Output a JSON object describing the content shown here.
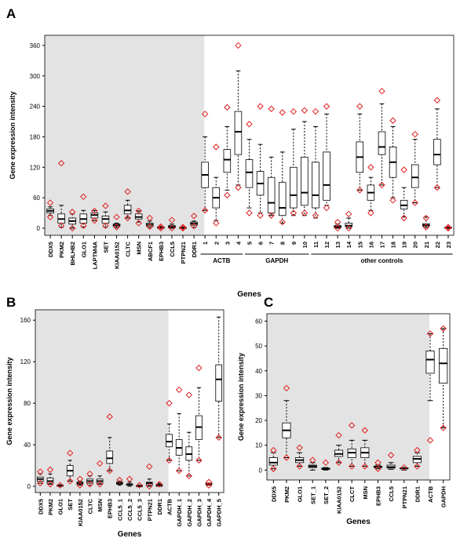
{
  "chart_data": [
    {
      "panel": "A",
      "type": "box",
      "xlabel": "Genes",
      "ylabel": "Gene expression intensity",
      "ylim": [
        -14,
        380
      ],
      "yticks": [
        0,
        60,
        120,
        180,
        240,
        300,
        360
      ],
      "shaded_count": 14,
      "categories": [
        "DDX5",
        "PKM2",
        "BHLHB2",
        "GLO1",
        "LAPTM4A",
        "SET",
        "KIAA0152",
        "CLTC",
        "MSN",
        "ABCF1",
        "EPHB3",
        "CCL5",
        "PTPN21",
        "DDR1",
        "1",
        "2",
        "3",
        "4",
        "5",
        "6",
        "7",
        "8",
        "9",
        "10",
        "11",
        "12",
        "13",
        "14",
        "15",
        "16",
        "17",
        "18",
        "19",
        "20",
        "21",
        "22",
        "23"
      ],
      "groups": [
        {
          "label": "ACTB",
          "from": 14,
          "to": 17
        },
        {
          "label": "GAPDH",
          "from": 18,
          "to": 23
        },
        {
          "label": "other controls",
          "from": 24,
          "to": 36
        }
      ],
      "boxes": [
        [
          30,
          34,
          38,
          25,
          42,
          [
            50,
            22
          ]
        ],
        [
          10,
          18,
          28,
          2,
          45,
          [
            128,
            5
          ]
        ],
        [
          8,
          14,
          20,
          0,
          28,
          [
            32,
            0
          ]
        ],
        [
          10,
          18,
          28,
          2,
          35,
          [
            62,
            5
          ]
        ],
        [
          20,
          26,
          30,
          15,
          35,
          [
            34,
            15
          ]
        ],
        [
          10,
          18,
          24,
          2,
          32,
          [
            44,
            5
          ]
        ],
        [
          4,
          6,
          8,
          1,
          10,
          [
            22,
            2
          ]
        ],
        [
          28,
          35,
          45,
          20,
          55,
          [
            72,
            20
          ]
        ],
        [
          18,
          22,
          28,
          12,
          34,
          [
            34,
            10
          ]
        ],
        [
          4,
          7,
          10,
          1,
          14,
          [
            20,
            3
          ]
        ],
        [
          0,
          1,
          2,
          0,
          3,
          [
            3,
            0
          ]
        ],
        [
          1,
          3,
          5,
          0,
          8,
          [
            16,
            0
          ]
        ],
        [
          0,
          1,
          1,
          0,
          2,
          [
            2,
            0
          ]
        ],
        [
          6,
          9,
          12,
          2,
          14,
          [
            24,
            4
          ]
        ],
        [
          80,
          105,
          130,
          35,
          180,
          [
            225,
            35
          ]
        ],
        [
          40,
          60,
          80,
          15,
          100,
          [
            160,
            10
          ]
        ],
        [
          110,
          135,
          155,
          75,
          200,
          [
            238,
            65
          ]
        ],
        [
          145,
          190,
          230,
          85,
          310,
          [
            360,
            80
          ]
        ],
        [
          80,
          110,
          135,
          40,
          175,
          [
            205,
            30
          ]
        ],
        [
          65,
          88,
          112,
          30,
          165,
          [
            240,
            25
          ]
        ],
        [
          30,
          50,
          100,
          25,
          140,
          [
            235,
            25
          ]
        ],
        [
          25,
          40,
          90,
          10,
          150,
          [
            228,
            12
          ]
        ],
        [
          40,
          65,
          120,
          25,
          195,
          [
            230,
            30
          ]
        ],
        [
          45,
          70,
          140,
          25,
          210,
          [
            232,
            30
          ]
        ],
        [
          40,
          65,
          130,
          20,
          200,
          [
            230,
            25
          ]
        ],
        [
          55,
          85,
          150,
          45,
          225,
          [
            240,
            40
          ]
        ],
        [
          1,
          3,
          5,
          0,
          8,
          [
            12,
            0
          ]
        ],
        [
          3,
          5,
          10,
          0,
          20,
          [
            28,
            0
          ]
        ],
        [
          110,
          140,
          170,
          75,
          225,
          [
            240,
            75
          ]
        ],
        [
          55,
          70,
          85,
          35,
          100,
          [
            120,
            30
          ]
        ],
        [
          145,
          160,
          190,
          85,
          245,
          [
            270,
            85
          ]
        ],
        [
          100,
          130,
          160,
          60,
          200,
          [
            212,
            55
          ]
        ],
        [
          38,
          45,
          55,
          22,
          80,
          [
            115,
            20
          ]
        ],
        [
          80,
          100,
          125,
          50,
          175,
          [
            185,
            50
          ]
        ],
        [
          4,
          6,
          9,
          1,
          22,
          [
            20,
            2
          ]
        ],
        [
          125,
          145,
          175,
          80,
          235,
          [
            252,
            80
          ]
        ],
        [
          0,
          1,
          2,
          0,
          2,
          [
            2,
            0
          ]
        ]
      ]
    },
    {
      "panel": "B",
      "type": "box",
      "xlabel": "Genes",
      "ylabel": "Gene expression intensity",
      "ylim": [
        -6,
        170
      ],
      "yticks": [
        0,
        40,
        80,
        120,
        160
      ],
      "shaded_count": 13,
      "categories": [
        "DDX5",
        "PKM2",
        "GLO1",
        "SET",
        "KIAA0152",
        "CLTC",
        "MSN",
        "EPHB3",
        "CCL5_1",
        "CCL5_2",
        "CCL5_3",
        "PTPN21",
        "DDR1",
        "ACTB",
        "GAPDH_1",
        "GAPDH_2",
        "GAPDH_3",
        "GAPDH_4",
        "GAPDH_5"
      ],
      "boxes": [
        [
          5,
          7,
          9,
          3,
          12,
          [
            14,
            3
          ]
        ],
        [
          3,
          5,
          8,
          2,
          12,
          [
            16,
            2
          ]
        ],
        [
          0,
          1,
          1,
          0,
          1,
          [
            1
          ]
        ],
        [
          10,
          15,
          20,
          5,
          25,
          [
            32,
            5
          ]
        ],
        [
          2,
          3,
          4,
          1,
          5,
          [
            7,
            1
          ]
        ],
        [
          3,
          5,
          7,
          1,
          10,
          [
            12,
            2
          ]
        ],
        [
          3,
          5,
          7,
          2,
          10,
          [
            22,
            2
          ]
        ],
        [
          22,
          27,
          34,
          15,
          47,
          [
            67,
            15
          ]
        ],
        [
          2,
          3,
          4,
          1,
          5,
          [
            6
          ]
        ],
        [
          1,
          2,
          2,
          0,
          4,
          [
            7
          ]
        ],
        [
          0,
          0,
          1,
          0,
          1,
          [
            1
          ]
        ],
        [
          1,
          3,
          4,
          0,
          7,
          [
            19,
            0
          ]
        ],
        [
          0,
          1,
          2,
          0,
          3,
          [
            2
          ]
        ],
        [
          38,
          43,
          50,
          25,
          60,
          [
            80,
            25
          ]
        ],
        [
          30,
          37,
          45,
          15,
          70,
          [
            93,
            15
          ]
        ],
        [
          25,
          31,
          38,
          10,
          52,
          [
            88,
            10
          ]
        ],
        [
          45,
          57,
          68,
          25,
          95,
          [
            114,
            25
          ]
        ],
        [
          2,
          2,
          3,
          1,
          3,
          [
            4,
            1
          ]
        ],
        [
          82,
          103,
          117,
          47,
          163,
          [
            47
          ]
        ]
      ]
    },
    {
      "panel": "C",
      "type": "box",
      "xlabel": "Genes",
      "ylabel": "Gene expression intensity",
      "ylim": [
        -4,
        63
      ],
      "yticks": [
        0,
        10,
        20,
        30,
        40,
        50,
        60
      ],
      "shaded_count": 12,
      "categories": [
        "DDX5",
        "PKM2",
        "GLO1",
        "SET_1",
        "SET_2",
        "KIAA0152",
        "CLCT",
        "MSN",
        "EPHB3",
        "CCL5",
        "PTPN21",
        "DDR1",
        "ACTB",
        "GAPDH"
      ],
      "boxes": [
        [
          2,
          3,
          5,
          0.5,
          7,
          [
            8,
            0.5
          ]
        ],
        [
          13,
          16,
          19,
          5,
          28,
          [
            33,
            5
          ]
        ],
        [
          3,
          4,
          5,
          1.5,
          7,
          [
            9,
            1.5
          ]
        ],
        [
          1,
          1.5,
          2,
          0,
          3,
          [
            4
          ]
        ],
        [
          0.3,
          0.5,
          0.8,
          0,
          1,
          [
            3
          ]
        ],
        [
          5.5,
          6.5,
          8,
          3,
          10,
          [
            14,
            3
          ]
        ],
        [
          5,
          7,
          8.5,
          1.5,
          12,
          [
            18,
            1.5
          ]
        ],
        [
          5,
          7,
          9,
          1.5,
          12,
          [
            16,
            1.5
          ]
        ],
        [
          1,
          1.3,
          1.6,
          0.5,
          2,
          [
            3,
            0.5
          ]
        ],
        [
          0.8,
          1.2,
          2,
          0.3,
          3,
          [
            6
          ]
        ],
        [
          0.5,
          0.7,
          0.9,
          0,
          1,
          [
            1
          ]
        ],
        [
          3,
          4.5,
          5.5,
          1.5,
          7,
          [
            8,
            1.5
          ]
        ],
        [
          39,
          44.5,
          48,
          28,
          55,
          [
            55,
            12
          ]
        ],
        [
          35,
          43,
          49,
          17,
          57,
          [
            57,
            17
          ]
        ]
      ]
    }
  ],
  "colors": {
    "shade": "#e3e3e3",
    "outlier": "#e02020",
    "box": "#000000"
  }
}
